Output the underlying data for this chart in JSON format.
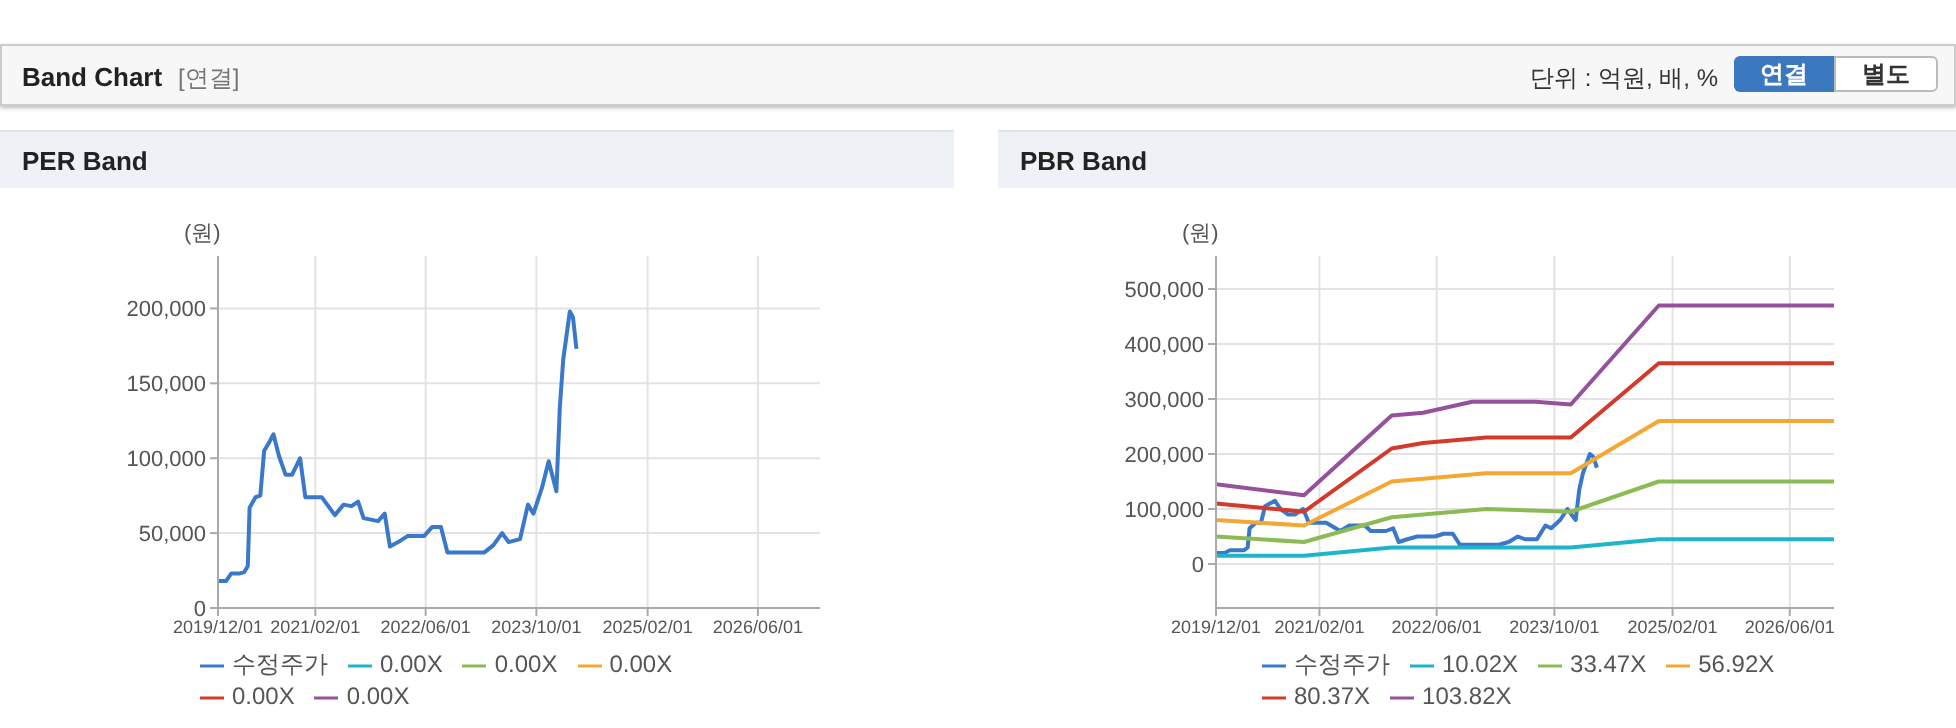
{
  "chart_data": [
    {
      "type": "line",
      "title": "PER Band",
      "ylabel": "(원)",
      "annotations": [
        "Band Chart",
        "[연결]",
        "단위 : 억원, 배, %",
        "연결",
        "별도"
      ],
      "grid": true,
      "legend": "bottom",
      "xlim": [
        "2019-12-01",
        "2027-03-01"
      ],
      "ylim": [
        0,
        235000
      ],
      "xticks": [
        {
          "value": "2019-12-01",
          "label": "2019/12/01"
        },
        {
          "value": "2021-02-01",
          "label": "2021/02/01"
        },
        {
          "value": "2022-06-01",
          "label": "2022/06/01"
        },
        {
          "value": "2023-10-01",
          "label": "2023/10/01"
        },
        {
          "value": "2025-02-01",
          "label": "2025/02/01"
        },
        {
          "value": "2026-06-01",
          "label": "2026/06/01"
        }
      ],
      "yticks": [
        0,
        {
          "value": 50000,
          "label": "50,000"
        },
        {
          "value": 100000,
          "label": "100,000"
        },
        {
          "value": 150000,
          "label": "150,000"
        },
        {
          "value": 200000,
          "label": "200,000"
        }
      ],
      "series": [
        {
          "name": "수정주가",
          "color": "#3a78c9",
          "x": [
            "2019-12-01",
            "2020-01-05",
            "2020-01-28",
            "2020-03-03",
            "2020-03-26",
            "2020-04-10",
            "2020-04-18",
            "2020-05-14",
            "2020-06-04",
            "2020-06-21",
            "2020-07-11",
            "2020-08-01",
            "2020-08-24",
            "2020-09-23",
            "2020-10-22",
            "2020-11-26",
            "2020-12-19",
            "2021-03-01",
            "2021-04-28",
            "2021-06-05",
            "2021-07-10",
            "2021-08-08",
            "2021-09-01",
            "2021-11-04",
            "2021-12-03",
            "2021-12-26",
            "2022-01-31",
            "2022-03-13",
            "2022-05-25",
            "2022-06-29",
            "2022-08-07",
            "2022-09-05",
            "2023-02-13",
            "2023-03-26",
            "2023-05-03",
            "2023-06-01",
            "2023-07-21",
            "2023-08-25",
            "2023-09-18",
            "2023-10-25",
            "2023-11-24",
            "2023-12-28",
            "2024-01-12",
            "2024-01-27",
            "2024-02-25",
            "2024-03-10",
            "2024-03-25"
          ],
          "values": [
            18000,
            18000,
            23000,
            23000,
            24000,
            28000,
            67000,
            74000,
            75000,
            105000,
            110000,
            116000,
            102000,
            89000,
            89000,
            100000,
            74000,
            74000,
            62000,
            69000,
            68000,
            71000,
            60000,
            58000,
            63000,
            41000,
            44000,
            48000,
            48000,
            54000,
            54000,
            37000,
            37000,
            42000,
            50000,
            44000,
            46000,
            69000,
            63000,
            80000,
            98000,
            78000,
            134000,
            166000,
            198000,
            194000,
            173000
          ]
        },
        {
          "name": "0.00X",
          "color": "#1fb5c8"
        },
        {
          "name": "0.00X",
          "color": "#8dbb53"
        },
        {
          "name": "0.00X",
          "color": "#f5a733"
        },
        {
          "name": "0.00X",
          "color": "#d33a2b"
        },
        {
          "name": "0.00X",
          "color": "#95519b"
        }
      ]
    },
    {
      "type": "line",
      "title": "PBR Band",
      "ylabel": "(원)",
      "grid": true,
      "legend": "bottom",
      "xlim": [
        "2019-12-01",
        "2026-12-01"
      ],
      "ylim": [
        -80000,
        560000
      ],
      "xticks": [
        {
          "value": "2019-12-01",
          "label": "2019/12/01"
        },
        {
          "value": "2021-02-01",
          "label": "2021/02/01"
        },
        {
          "value": "2022-06-01",
          "label": "2022/06/01"
        },
        {
          "value": "2023-10-01",
          "label": "2023/10/01"
        },
        {
          "value": "2025-02-01",
          "label": "2025/02/01"
        },
        {
          "value": "2026-06-01",
          "label": "2026/06/01"
        }
      ],
      "yticks": [
        0,
        {
          "value": 100000,
          "label": "100,000"
        },
        {
          "value": 200000,
          "label": "200,000"
        },
        {
          "value": 300000,
          "label": "300,000"
        },
        {
          "value": 400000,
          "label": "400,000"
        },
        {
          "value": 500000,
          "label": "500,000"
        }
      ],
      "series": [
        {
          "name": "수정주가",
          "color": "#3a78c9",
          "x": [
            "2019-12-01",
            "2020-01-05",
            "2020-01-28",
            "2020-03-03",
            "2020-03-26",
            "2020-04-10",
            "2020-04-18",
            "2020-05-14",
            "2020-06-04",
            "2020-06-21",
            "2020-07-11",
            "2020-08-01",
            "2020-08-24",
            "2020-09-23",
            "2020-10-22",
            "2020-11-26",
            "2020-12-19",
            "2021-03-01",
            "2021-04-28",
            "2021-06-05",
            "2021-07-10",
            "2021-08-08",
            "2021-09-01",
            "2021-11-04",
            "2021-12-03",
            "2021-12-26",
            "2022-01-31",
            "2022-03-13",
            "2022-05-25",
            "2022-06-29",
            "2022-08-07",
            "2022-09-05",
            "2023-02-13",
            "2023-03-26",
            "2023-05-03",
            "2023-06-01",
            "2023-07-21",
            "2023-08-25",
            "2023-09-18",
            "2023-10-25",
            "2023-11-24",
            "2023-12-28",
            "2024-01-12",
            "2024-01-27",
            "2024-02-25",
            "2024-03-10",
            "2024-03-25"
          ],
          "values": [
            20000,
            20000,
            25000,
            25000,
            25000,
            30000,
            65000,
            75000,
            75000,
            105000,
            110000,
            115000,
            100000,
            90000,
            90000,
            100000,
            75000,
            75000,
            60000,
            70000,
            70000,
            70000,
            60000,
            60000,
            65000,
            40000,
            45000,
            50000,
            50000,
            55000,
            55000,
            35000,
            35000,
            40000,
            50000,
            45000,
            45000,
            70000,
            65000,
            80000,
            100000,
            80000,
            135000,
            165000,
            200000,
            195000,
            175000
          ]
        },
        {
          "name": "10.02X",
          "color": "#1fb5c8",
          "x": [
            "2019-12-01",
            "2020-11-29",
            "2021-11-27",
            "2023-12-08",
            "2024-12-06",
            "2026-12-01"
          ],
          "values": [
            15000,
            15000,
            30000,
            30000,
            45000,
            45000
          ]
        },
        {
          "name": "33.47X",
          "color": "#8dbb53",
          "x": [
            "2019-12-01",
            "2020-11-29",
            "2021-11-27",
            "2022-12-23",
            "2023-12-08",
            "2024-12-06",
            "2026-12-01"
          ],
          "values": [
            50000,
            40000,
            85000,
            100000,
            95000,
            150000,
            150000
          ]
        },
        {
          "name": "56.92X",
          "color": "#f5a733",
          "x": [
            "2019-12-01",
            "2020-11-29",
            "2021-11-27",
            "2022-12-23",
            "2023-12-08",
            "2024-12-06",
            "2026-12-01"
          ],
          "values": [
            80000,
            70000,
            150000,
            165000,
            165000,
            260000,
            260000
          ]
        },
        {
          "name": "80.37X",
          "color": "#d33a2b",
          "x": [
            "2019-12-01",
            "2020-11-29",
            "2021-11-27",
            "2022-04-06",
            "2022-12-23",
            "2023-07-14",
            "2023-12-08",
            "2024-12-06",
            "2026-12-01"
          ],
          "values": [
            110000,
            95000,
            210000,
            220000,
            230000,
            230000,
            230000,
            365000,
            365000
          ]
        },
        {
          "name": "103.82X",
          "color": "#95519b",
          "x": [
            "2019-12-01",
            "2020-11-29",
            "2021-11-27",
            "2022-04-06",
            "2022-10-26",
            "2023-07-14",
            "2023-12-08",
            "2024-12-06",
            "2026-12-01"
          ],
          "values": [
            145000,
            125000,
            270000,
            275000,
            295000,
            295000,
            290000,
            470000,
            470000
          ]
        }
      ]
    }
  ]
}
